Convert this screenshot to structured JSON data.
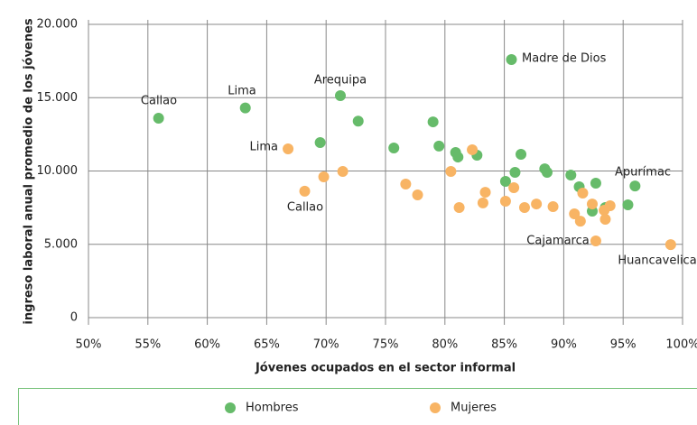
{
  "chart_data": {
    "type": "scatter",
    "x_label": "Jóvenes ocupados en el sector informal",
    "y_label": "ingreso laboral anual promedio de los jóvenes",
    "xlim": [
      50,
      100
    ],
    "xticks": [
      {
        "value": 50,
        "label": "50%"
      },
      {
        "value": 55,
        "label": "55%"
      },
      {
        "value": 60,
        "label": "60%"
      },
      {
        "value": 65,
        "label": "65%"
      },
      {
        "value": 70,
        "label": "70%"
      },
      {
        "value": 75,
        "label": "75%"
      },
      {
        "value": 80,
        "label": "80%"
      },
      {
        "value": 85,
        "label": "85%"
      },
      {
        "value": 90,
        "label": "90%"
      },
      {
        "value": 95,
        "label": "95%"
      },
      {
        "value": 100,
        "label": "100%"
      }
    ],
    "ylim": [
      0,
      20000
    ],
    "yticks": [
      0,
      {
        "value": 5000,
        "label": "5.000"
      },
      {
        "value": 10000,
        "label": "10.000"
      },
      {
        "value": 15000,
        "label": "15.000"
      },
      {
        "value": 20000,
        "label": "20.000"
      }
    ],
    "grid": true,
    "series": [
      {
        "name": "Hombres",
        "color": "#66bb6a",
        "x": [
          55.9,
          63.2,
          71.2,
          72.7,
          69.5,
          75.7,
          79.0,
          79.5,
          80.9,
          81.1,
          82.7,
          85.6,
          85.1,
          85.9,
          86.4,
          88.4,
          88.6,
          90.6,
          91.3,
          92.7,
          92.4,
          93.5,
          95.4,
          96.0
        ],
        "values": [
          13600,
          14300,
          15140,
          13400,
          11940,
          11570,
          13350,
          11700,
          11260,
          10950,
          11080,
          17600,
          9290,
          9910,
          11140,
          10150,
          9910,
          9720,
          8920,
          9170,
          7260,
          7510,
          7690,
          8980
        ]
      },
      {
        "name": "Mujeres",
        "color": "#f8b464",
        "x": [
          66.8,
          68.2,
          69.8,
          71.4,
          76.7,
          77.7,
          80.5,
          81.2,
          82.3,
          83.4,
          83.2,
          85.1,
          85.8,
          86.7,
          87.7,
          89.1,
          90.9,
          91.4,
          91.6,
          92.4,
          92.7,
          93.4,
          93.5,
          93.9,
          99.0
        ],
        "values": [
          11510,
          8620,
          9600,
          9970,
          9110,
          8370,
          9970,
          7510,
          11450,
          8550,
          7820,
          7940,
          8860,
          7510,
          7750,
          7570,
          7080,
          6580,
          8490,
          7750,
          5230,
          7320,
          6710,
          7630,
          4980
        ]
      }
    ],
    "annotations": [
      "Callao",
      "Lima",
      "Arequipa",
      "Madre de Dios",
      "Lima",
      "Callao",
      "Apurímac",
      "Cajamarca",
      "Huancavelica"
    ]
  }
}
